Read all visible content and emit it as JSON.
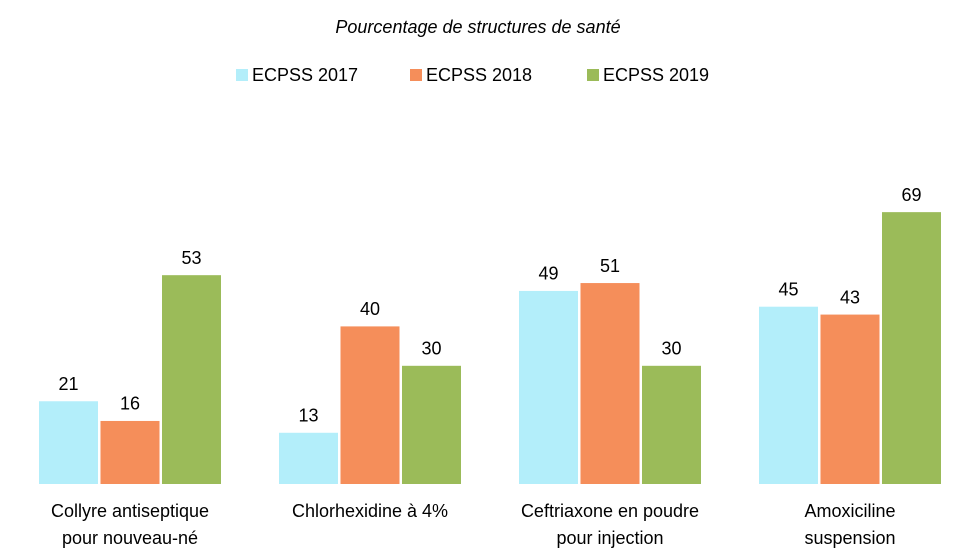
{
  "chart_data": {
    "type": "bar",
    "title": "Pourcentage de structures de santé",
    "categories": [
      "Collyre antiseptique\npour nouveau-né",
      "Chlorhexidine à 4%",
      "Ceftriaxone en poudre\npour injection",
      "Amoxiciline\nsuspension"
    ],
    "series": [
      {
        "name": "ECPSS 2017",
        "color": "#b3eefa",
        "values": [
          21,
          13,
          49,
          45
        ]
      },
      {
        "name": "ECPSS 2018",
        "color": "#f58e5a",
        "values": [
          16,
          40,
          51,
          43
        ]
      },
      {
        "name": "ECPSS 2019",
        "color": "#9bbb59",
        "values": [
          53,
          30,
          30,
          69
        ]
      }
    ],
    "ylim": [
      0,
      75
    ]
  }
}
